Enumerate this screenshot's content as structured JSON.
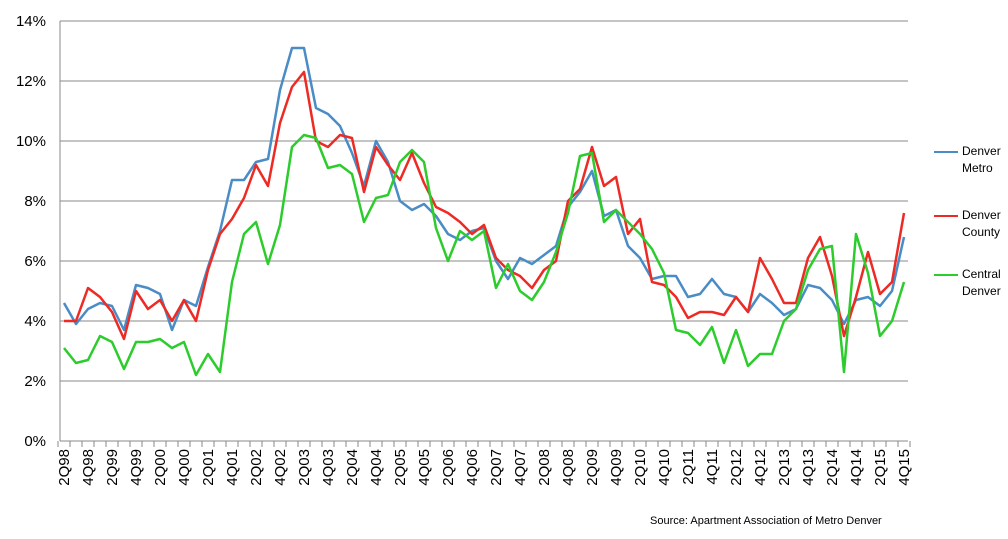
{
  "chart_data": {
    "type": "line",
    "source": "Source:  Apartment Association of Metro Denver",
    "categories": [
      "2Q98",
      null,
      "4Q98",
      null,
      "2Q99",
      null,
      "4Q99",
      null,
      "2Q00",
      null,
      "4Q00",
      null,
      "2Q01",
      null,
      "4Q01",
      null,
      "2Q02",
      null,
      "4Q02",
      null,
      "2Q03",
      null,
      "4Q03",
      null,
      "2Q04",
      null,
      "4Q04",
      null,
      "2Q05",
      null,
      "4Q05",
      null,
      "2Q06",
      null,
      "4Q06",
      null,
      "2Q07",
      null,
      "4Q07",
      null,
      "2Q08",
      null,
      "4Q08",
      null,
      "2Q09",
      null,
      "4Q09",
      null,
      "2Q10",
      null,
      "4Q10",
      null,
      "2Q11",
      null,
      "4Q11",
      null,
      "2Q12",
      null,
      "4Q12",
      null,
      "2Q13",
      null,
      "4Q13",
      null,
      "2Q14",
      null,
      "4Q14",
      null,
      "2Q15",
      null,
      "4Q15"
    ],
    "series": [
      {
        "name": "Denver Metro",
        "color": "#4a8cc6",
        "values": [
          4.6,
          3.9,
          4.4,
          4.6,
          4.5,
          3.7,
          5.2,
          5.1,
          4.9,
          3.7,
          4.7,
          4.5,
          5.8,
          7.0,
          8.7,
          8.7,
          9.3,
          9.4,
          11.7,
          13.1,
          13.1,
          11.1,
          10.9,
          10.5,
          9.6,
          8.5,
          10.0,
          9.3,
          8.0,
          7.7,
          7.9,
          7.5,
          6.9,
          6.7,
          7.0,
          7.1,
          6.0,
          5.4,
          6.1,
          5.9,
          6.2,
          6.5,
          7.8,
          8.3,
          9.0,
          7.5,
          7.7,
          6.5,
          6.1,
          5.4,
          5.5,
          5.5,
          4.8,
          4.9,
          5.4,
          4.9,
          4.8,
          4.3,
          4.9,
          4.6,
          4.2,
          4.4,
          5.2,
          5.1,
          4.7,
          3.9,
          4.7,
          4.8,
          4.5,
          5.0,
          6.8
        ]
      },
      {
        "name": "Denver County",
        "color": "#ee2a24",
        "values": [
          4.0,
          4.0,
          5.1,
          4.8,
          4.3,
          3.4,
          5.0,
          4.4,
          4.7,
          4.0,
          4.7,
          4.0,
          5.7,
          6.9,
          7.4,
          8.1,
          9.2,
          8.5,
          10.6,
          11.8,
          12.3,
          10.0,
          9.8,
          10.2,
          10.1,
          8.3,
          9.8,
          9.2,
          8.7,
          9.6,
          8.6,
          7.8,
          7.6,
          7.3,
          6.9,
          7.2,
          6.1,
          5.7,
          5.5,
          5.1,
          5.7,
          6.0,
          8.0,
          8.4,
          9.8,
          8.5,
          8.8,
          6.9,
          7.4,
          5.3,
          5.2,
          4.8,
          4.1,
          4.3,
          4.3,
          4.2,
          4.8,
          4.3,
          6.1,
          5.4,
          4.6,
          4.6,
          6.1,
          6.8,
          5.5,
          3.5,
          4.8,
          6.3,
          4.9,
          5.3,
          7.6
        ]
      },
      {
        "name": "Central Denver",
        "color": "#2dcc2d",
        "values": [
          3.1,
          2.6,
          2.7,
          3.5,
          3.3,
          2.4,
          3.3,
          3.3,
          3.4,
          3.1,
          3.3,
          2.2,
          2.9,
          2.3,
          5.3,
          6.9,
          7.3,
          5.9,
          7.2,
          9.8,
          10.2,
          10.1,
          9.1,
          9.2,
          8.9,
          7.3,
          8.1,
          8.2,
          9.3,
          9.7,
          9.3,
          7.1,
          6.0,
          7.0,
          6.7,
          7.0,
          5.1,
          5.9,
          5.0,
          4.7,
          5.3,
          6.3,
          7.6,
          9.5,
          9.6,
          7.3,
          7.7,
          7.3,
          6.9,
          6.4,
          5.6,
          3.7,
          3.6,
          3.2,
          3.8,
          2.6,
          3.7,
          2.5,
          2.9,
          2.9,
          4.0,
          4.4,
          5.7,
          6.4,
          6.5,
          2.3,
          6.9,
          5.6,
          3.5,
          4.0,
          5.3
        ]
      }
    ],
    "ylim": [
      0,
      14
    ],
    "yticks": [
      {
        "value": 0,
        "label": "0%"
      },
      {
        "value": 2,
        "label": "2%"
      },
      {
        "value": 4,
        "label": "4%"
      },
      {
        "value": 6,
        "label": "6%"
      },
      {
        "value": 8,
        "label": "8%"
      },
      {
        "value": 10,
        "label": "10%"
      },
      {
        "value": 12,
        "label": "12%"
      },
      {
        "value": 14,
        "label": "14%"
      }
    ],
    "grid": true
  }
}
